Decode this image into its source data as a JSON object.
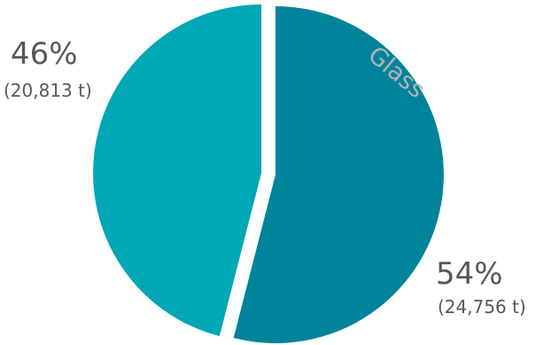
{
  "chart_data": {
    "type": "pie",
    "title": "",
    "category_label": "Glass",
    "slices": [
      {
        "label": "",
        "percent": 54,
        "value": 24756,
        "pct_text": "54%",
        "amount_text": "(24,756 t)",
        "color": "#00849b"
      },
      {
        "label": "",
        "percent": 46,
        "value": 20813,
        "pct_text": "46%",
        "amount_text": "(20,813 t)",
        "color": "#00a7b5"
      }
    ],
    "unit": "t",
    "start_angle_deg": 0,
    "exploded": true,
    "legend": "none"
  }
}
